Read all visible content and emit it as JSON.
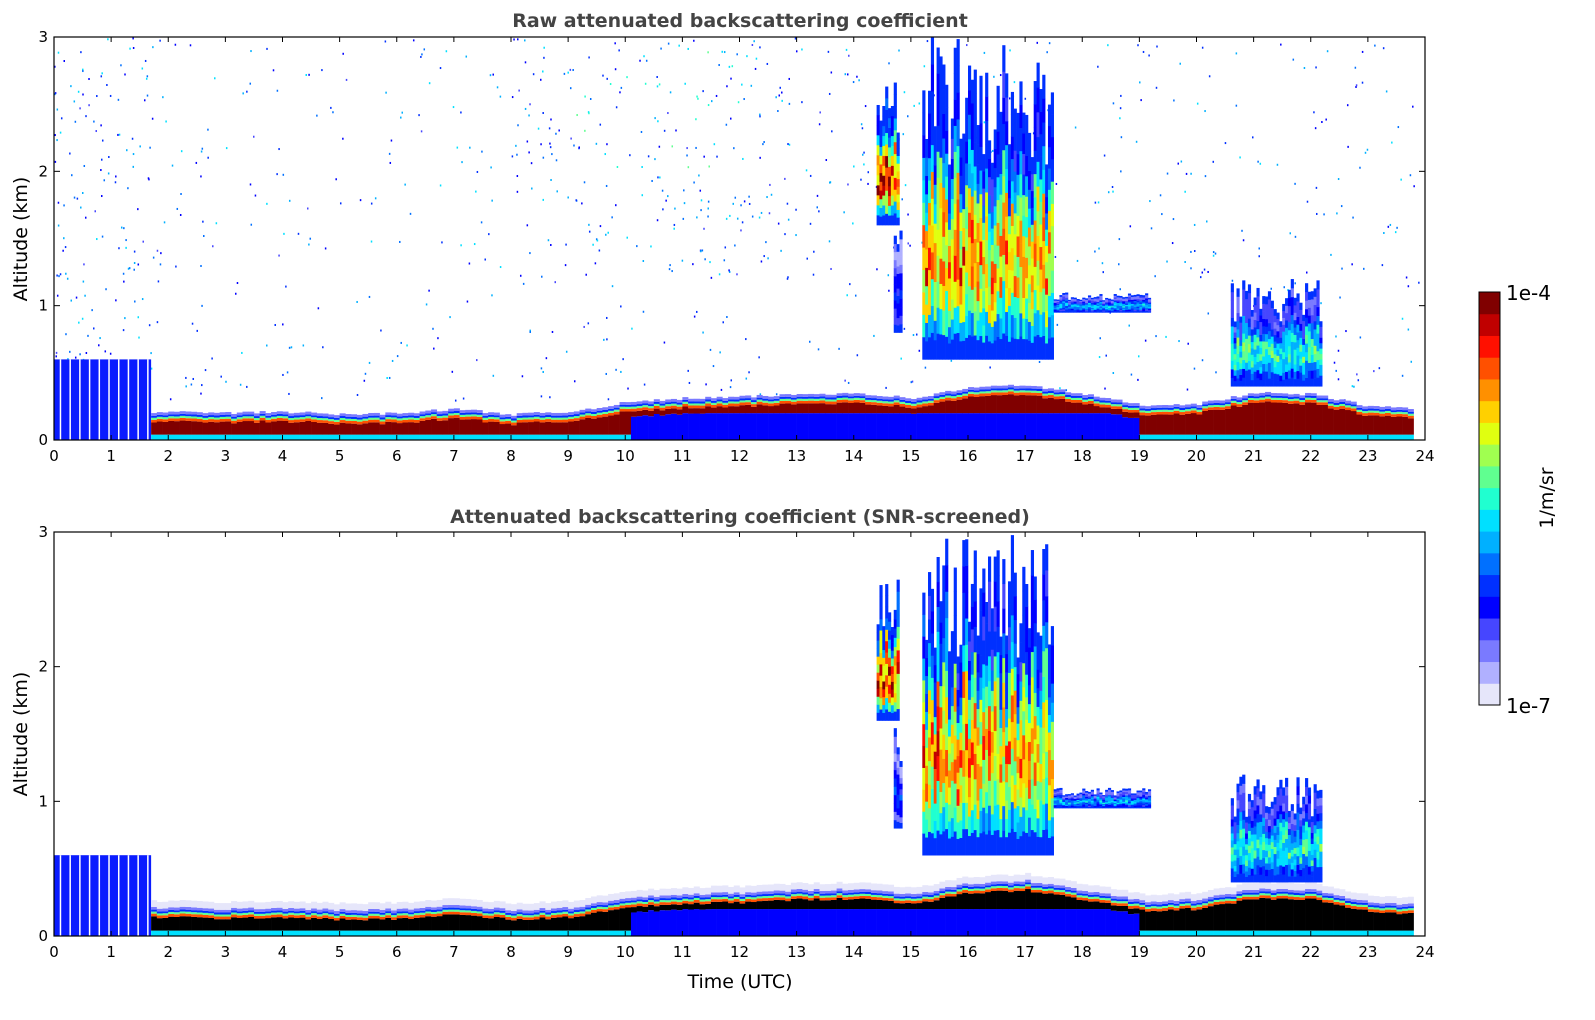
{
  "chart_data": [
    {
      "type": "heatmap",
      "title": "Raw attenuated backscattering coefficient",
      "xlabel": "",
      "ylabel": "Altitude (km)",
      "xlim": [
        0,
        24
      ],
      "ylim": [
        0,
        3
      ],
      "xticks": [
        "0",
        "1",
        "2",
        "3",
        "4",
        "5",
        "6",
        "7",
        "8",
        "9",
        "10",
        "11",
        "12",
        "13",
        "14",
        "15",
        "16",
        "17",
        "18",
        "19",
        "20",
        "21",
        "22",
        "23",
        "24"
      ],
      "yticks": [
        "0",
        "1",
        "2",
        "3"
      ],
      "screened": false
    },
    {
      "type": "heatmap",
      "title": "Attenuated backscattering coefficient (SNR-screened)",
      "xlabel": "Time (UTC)",
      "ylabel": "Altitude (km)",
      "xlim": [
        0,
        24
      ],
      "ylim": [
        0,
        3
      ],
      "xticks": [
        "0",
        "1",
        "2",
        "3",
        "4",
        "5",
        "6",
        "7",
        "8",
        "9",
        "10",
        "11",
        "12",
        "13",
        "14",
        "15",
        "16",
        "17",
        "18",
        "19",
        "20",
        "21",
        "22",
        "23",
        "24"
      ],
      "yticks": [
        "0",
        "1",
        "2",
        "3"
      ],
      "screened": true
    }
  ],
  "boundary_layer": {
    "hours": [
      1.7,
      2,
      3,
      4,
      5,
      6,
      7,
      8,
      9,
      10,
      11,
      12,
      13,
      14,
      15,
      16,
      17,
      18,
      19,
      20,
      21,
      22,
      23,
      23.8
    ],
    "top_km": [
      0.2,
      0.2,
      0.19,
      0.2,
      0.18,
      0.19,
      0.22,
      0.18,
      0.2,
      0.27,
      0.3,
      0.31,
      0.33,
      0.34,
      0.3,
      0.38,
      0.4,
      0.33,
      0.25,
      0.26,
      0.34,
      0.33,
      0.24,
      0.22
    ]
  },
  "noisy_layer": {
    "start_h": 0,
    "end_h": 1.7,
    "top_km": 0.6
  },
  "clouds": [
    {
      "start_h": 14.4,
      "end_h": 14.8,
      "base_km": 1.6,
      "top_km": 2.7,
      "peak": 0.95
    },
    {
      "start_h": 14.7,
      "end_h": 14.85,
      "base_km": 0.8,
      "top_km": 1.6,
      "peak": 0.3
    },
    {
      "start_h": 15.2,
      "end_h": 16.2,
      "base_km": 0.6,
      "top_km": 3.0,
      "peak": 0.85
    },
    {
      "start_h": 16.2,
      "end_h": 17.5,
      "base_km": 0.6,
      "top_km": 3.0,
      "peak": 0.8
    },
    {
      "start_h": 17.5,
      "end_h": 19.2,
      "base_km": 0.95,
      "top_km": 1.1,
      "peak": 0.45
    },
    {
      "start_h": 20.6,
      "end_h": 22.2,
      "base_km": 0.4,
      "top_km": 1.2,
      "peak": 0.55
    }
  ],
  "colorbar": {
    "min_label": "1e-7",
    "max_label": "1e-4",
    "unit": "1/m/sr",
    "colors": [
      "#e6e6fa",
      "#b0b0ff",
      "#7a7aff",
      "#4646ff",
      "#0000ff",
      "#0030ff",
      "#0070ff",
      "#00b0ff",
      "#00e0ff",
      "#20ffd0",
      "#60ff90",
      "#a0ff50",
      "#e0ff10",
      "#ffd000",
      "#ff9000",
      "#ff5000",
      "#ff1000",
      "#c00000",
      "#800000"
    ]
  }
}
